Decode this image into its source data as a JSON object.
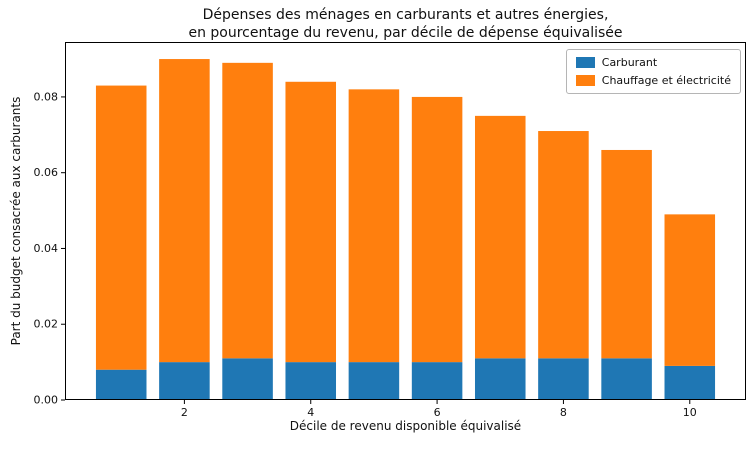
{
  "title": {
    "line1": "Dépenses des ménages en carburants et autres énergies,",
    "line2": "en pourcentage du revenu, par décile de dépense équivalisée"
  },
  "chart_data": {
    "type": "bar",
    "stacked": true,
    "x": [
      1,
      2,
      3,
      4,
      5,
      6,
      7,
      8,
      9,
      10
    ],
    "series": [
      {
        "name": "Carburant",
        "color": "#1f77b4",
        "values": [
          0.008,
          0.01,
          0.011,
          0.01,
          0.01,
          0.01,
          0.011,
          0.011,
          0.011,
          0.009
        ]
      },
      {
        "name": "Chauffage et électricité",
        "color": "#ff7f0e",
        "values": [
          0.075,
          0.08,
          0.078,
          0.074,
          0.072,
          0.07,
          0.064,
          0.06,
          0.055,
          0.04
        ]
      }
    ],
    "totals": [
      0.083,
      0.09,
      0.089,
      0.084,
      0.082,
      0.08,
      0.075,
      0.071,
      0.066,
      0.049
    ],
    "xlabel": "Décile de revenu disponible équivalisé",
    "ylabel": "Part du budget consacrée aux carburants",
    "xlim": [
      0.11,
      10.89
    ],
    "ylim": [
      0,
      0.0945
    ],
    "bar_width": 0.8,
    "yticks": [
      0.0,
      0.02,
      0.04,
      0.06,
      0.08
    ],
    "ytick_labels": [
      "0.00",
      "0.02",
      "0.04",
      "0.06",
      "0.08"
    ],
    "xticks": [
      2,
      4,
      6,
      8,
      10
    ],
    "xtick_labels": [
      "2",
      "4",
      "6",
      "8",
      "10"
    ],
    "grid": false,
    "legend_position": "upper right",
    "frame_color": "#000000",
    "background_color": "#ffffff"
  }
}
